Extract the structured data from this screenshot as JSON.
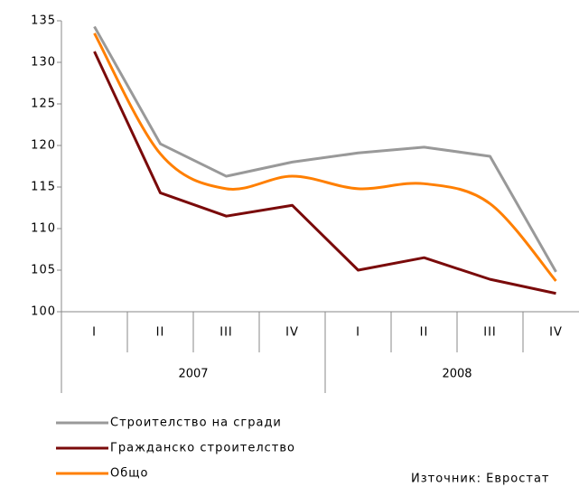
{
  "chart_data": {
    "type": "line",
    "categories": [
      "I",
      "II",
      "III",
      "IV",
      "I",
      "II",
      "III",
      "IV"
    ],
    "groups": [
      {
        "label": "2007",
        "span": 4
      },
      {
        "label": "2008",
        "span": 4
      }
    ],
    "series": [
      {
        "name": "Строителство на сгради",
        "color": "#999999",
        "values": [
          134.3,
          120.2,
          116.3,
          118.0,
          119.1,
          119.8,
          118.7,
          104.8
        ]
      },
      {
        "name": "Гражданско строителство",
        "color": "#7a0a0a",
        "values": [
          131.3,
          114.3,
          111.5,
          112.8,
          105.0,
          106.5,
          103.9,
          102.2
        ]
      },
      {
        "name": "Общо",
        "color": "#ff7f00",
        "values": [
          133.5,
          119.0,
          114.8,
          116.3,
          114.8,
          115.4,
          113.0,
          103.7
        ],
        "smooth": true
      }
    ],
    "ylim": [
      100,
      135
    ],
    "yticks": [
      100,
      105,
      110,
      115,
      120,
      125,
      130,
      135
    ],
    "legend": "bottom-left",
    "source": "Източник: Евростат"
  }
}
